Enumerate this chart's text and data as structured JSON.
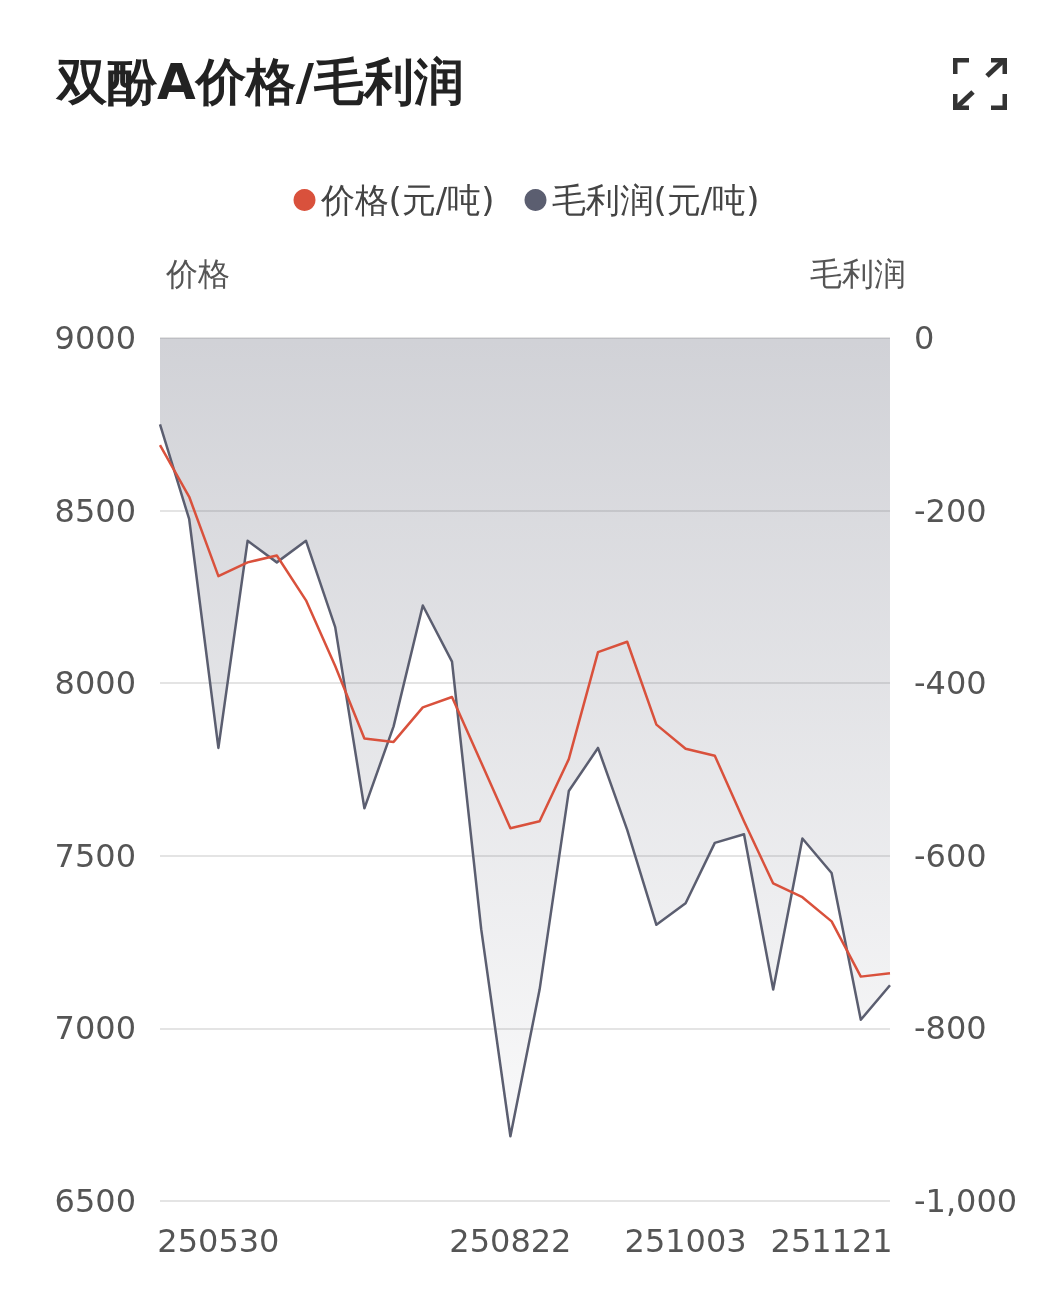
{
  "chart_data": {
    "type": "line",
    "title": "双酚A价格/毛利润",
    "ylabel": "价格",
    "y2label": "毛利润",
    "categories": [
      null,
      null,
      "250530",
      null,
      null,
      null,
      null,
      null,
      null,
      null,
      null,
      null,
      "250822",
      null,
      null,
      null,
      null,
      null,
      "251003",
      null,
      null,
      null,
      null,
      "251121",
      null,
      null
    ],
    "series": [
      {
        "name": "价格(元/吨)",
        "color": "#d9513c",
        "values": [
          8690,
          8540,
          8310,
          8350,
          8370,
          8240,
          8050,
          7840,
          7830,
          7930,
          7960,
          7770,
          7580,
          7600,
          7780,
          8090,
          8120,
          7880,
          7810,
          7790,
          7600,
          7420,
          7380,
          7310,
          7150,
          7160
        ]
      },
      {
        "name": "毛利润(元/吨)",
        "type": "area",
        "axis": "y2",
        "color": "#5b5e70",
        "values": [
          -100,
          -210,
          -475,
          -235,
          -260,
          -235,
          -335,
          -545,
          -450,
          -310,
          -375,
          -685,
          -925,
          -755,
          -525,
          -475,
          -570,
          -680,
          -655,
          -585,
          -575,
          -755,
          -580,
          -620,
          -790,
          -750
        ]
      }
    ],
    "ylim": [
      6500,
      9000
    ],
    "yticks": [
      6500,
      7000,
      7500,
      8000,
      8500,
      9000
    ],
    "y2lim": [
      -1000,
      0
    ],
    "y2ticks": [
      {
        "value": -1000,
        "label": "-1,000"
      },
      -800,
      -600,
      -400,
      -200,
      0
    ],
    "grid": "y",
    "legend": "top",
    "marker": "none",
    "line_style": "solid"
  }
}
